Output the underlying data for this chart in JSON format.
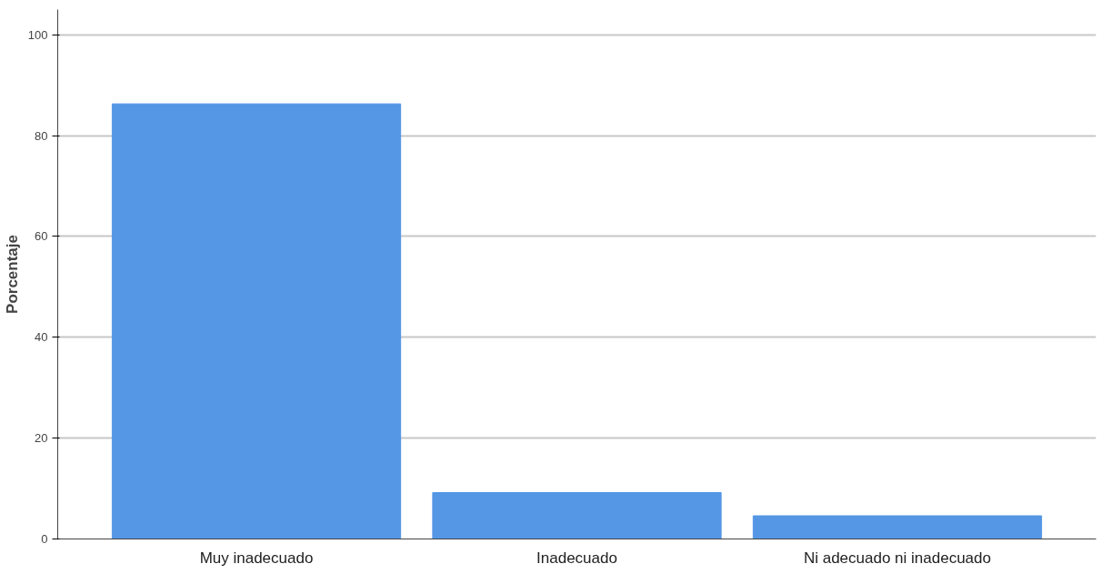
{
  "chart_data": {
    "type": "bar",
    "ylabel": "Porcentaje",
    "categories": [
      "Muy inadecuado",
      "Inadecuado",
      "Ni adecuado ni inadecuado"
    ],
    "values": [
      86.3,
      9.2,
      4.6
    ],
    "color": "#5596e5",
    "ylim": [
      0,
      105
    ],
    "yticks": [
      0,
      20,
      40,
      60,
      80,
      100
    ],
    "grid": "y"
  }
}
